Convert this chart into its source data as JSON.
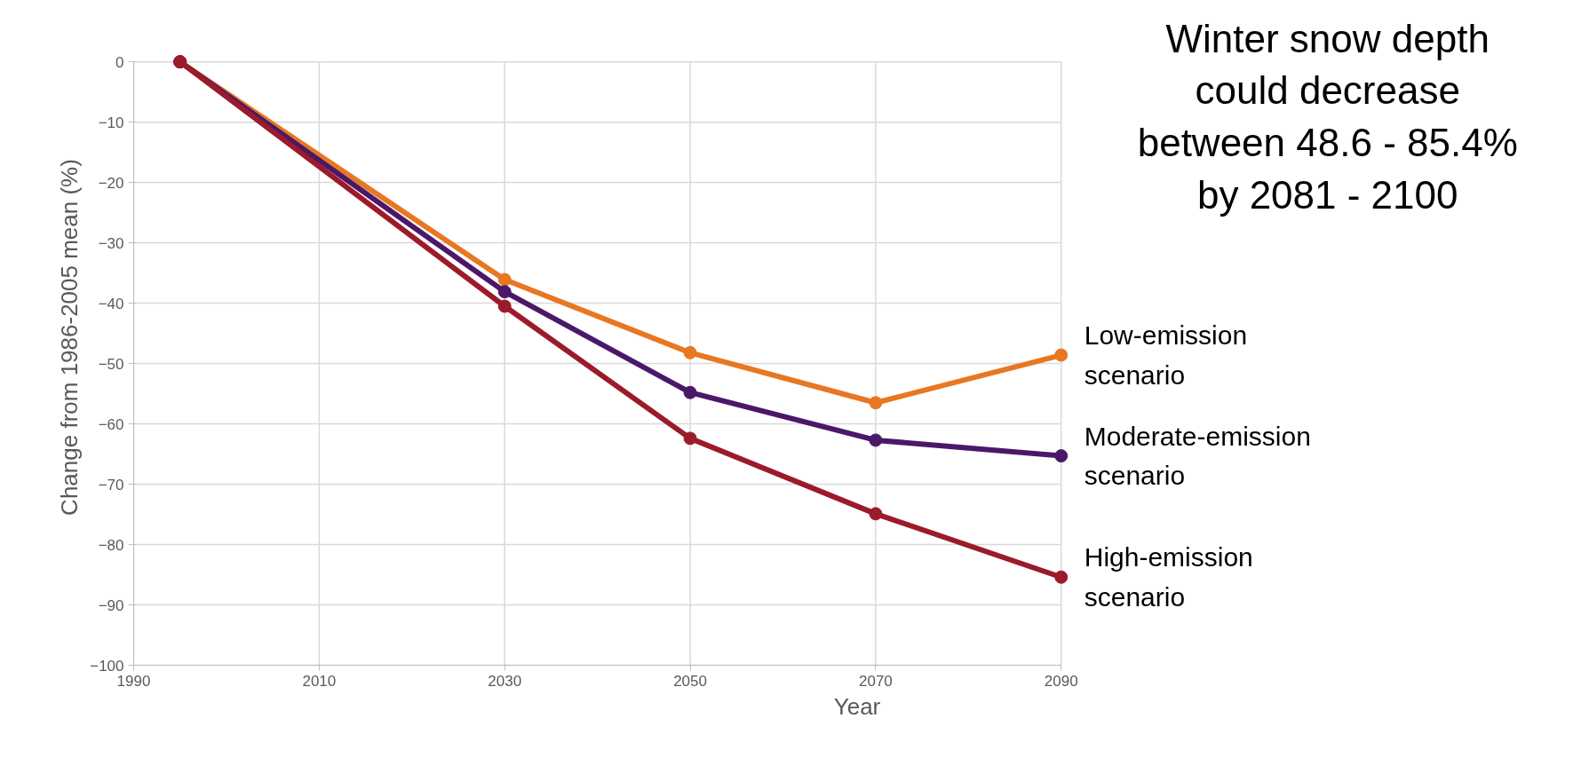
{
  "chart_data": {
    "type": "line",
    "title": "Winter snow depth could decrease between 48.6 - 85.4% by 2081 - 2100",
    "xlabel": "Year",
    "ylabel": "Change from 1986-2005 mean (%)",
    "x": [
      1995,
      2030,
      2050,
      2070,
      2090
    ],
    "series": [
      {
        "name": "Low-emission scenario",
        "color": "#e87722",
        "values": [
          0,
          -36.1,
          -48.2,
          -56.5,
          -48.6
        ]
      },
      {
        "name": "Moderate-emission scenario",
        "color": "#4b1869",
        "values": [
          0,
          -38.1,
          -54.8,
          -62.7,
          -65.3
        ]
      },
      {
        "name": "High-emission scenario",
        "color": "#9b1b2a",
        "values": [
          0,
          -40.5,
          -62.4,
          -74.9,
          -85.4
        ]
      }
    ],
    "xlim": [
      1990,
      2090
    ],
    "xticks": [
      1990,
      2010,
      2030,
      2050,
      2070,
      2090
    ],
    "ylim": [
      -100,
      0
    ],
    "yticks": [
      0,
      -10,
      -20,
      -30,
      -40,
      -50,
      -60,
      -70,
      -80,
      -90,
      -100
    ],
    "grid": true,
    "marker": "circle",
    "line_style": "solid"
  }
}
